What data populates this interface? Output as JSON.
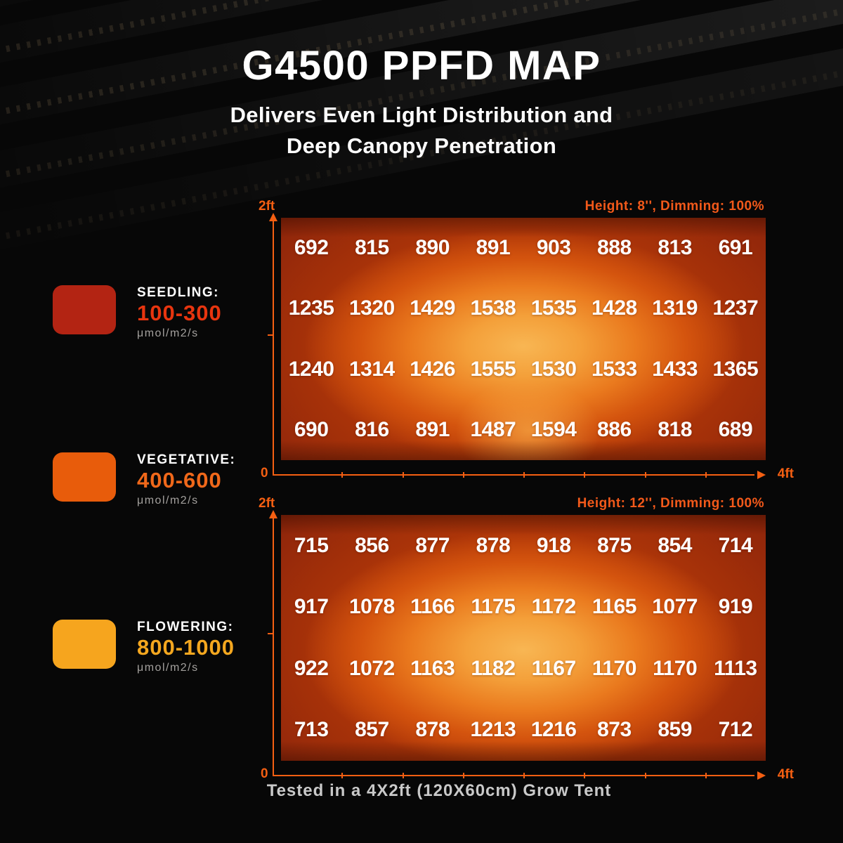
{
  "title": "G4500 PPFD MAP",
  "subtitle": {
    "line1": "Delivers Even Light Distribution and",
    "line2": "Deep Canopy Penetration"
  },
  "legend": {
    "items": [
      {
        "label": "SEEDLING:",
        "range": "100-300",
        "unit": "μmol/m2/s",
        "swatch_color": "#b32413",
        "range_color": "#e8350f"
      },
      {
        "label": "VEGETATIVE:",
        "range": "400-600",
        "unit": "μmol/m2/s",
        "swatch_color": "#e85c0b",
        "range_color": "#f0681a"
      },
      {
        "label": "FLOWERING:",
        "range": "800-1000",
        "unit": "μmol/m2/s",
        "swatch_color": "#f6a51e",
        "range_color": "#f4a71f"
      }
    ]
  },
  "axes": {
    "y_max_label": "2ft",
    "origin_label": "0",
    "x_max_label": "4ft"
  },
  "accent_color": "#f45f12",
  "footer": "Tested in a 4X2ft (120X60cm) Grow Tent",
  "chart_data": [
    {
      "type": "heatmap",
      "title": "Height: 8'', Dimming: 100%",
      "xlabel": "4ft",
      "ylabel": "2ft",
      "x_range_ft": [
        0,
        4
      ],
      "y_range_ft": [
        0,
        2
      ],
      "unit": "μmol/m2/s",
      "values": [
        [
          692,
          815,
          890,
          891,
          903,
          888,
          813,
          691
        ],
        [
          1235,
          1320,
          1429,
          1538,
          1535,
          1428,
          1319,
          1237
        ],
        [
          1240,
          1314,
          1426,
          1555,
          1530,
          1533,
          1433,
          1365
        ],
        [
          690,
          816,
          891,
          1487,
          1594,
          886,
          818,
          689
        ]
      ]
    },
    {
      "type": "heatmap",
      "title": "Height: 12'', Dimming: 100%",
      "xlabel": "4ft",
      "ylabel": "2ft",
      "x_range_ft": [
        0,
        4
      ],
      "y_range_ft": [
        0,
        2
      ],
      "unit": "μmol/m2/s",
      "values": [
        [
          715,
          856,
          877,
          878,
          918,
          875,
          854,
          714
        ],
        [
          917,
          1078,
          1166,
          1175,
          1172,
          1165,
          1077,
          919
        ],
        [
          922,
          1072,
          1163,
          1182,
          1167,
          1170,
          1170,
          1113
        ],
        [
          713,
          857,
          878,
          1213,
          1216,
          873,
          859,
          712
        ]
      ]
    }
  ]
}
